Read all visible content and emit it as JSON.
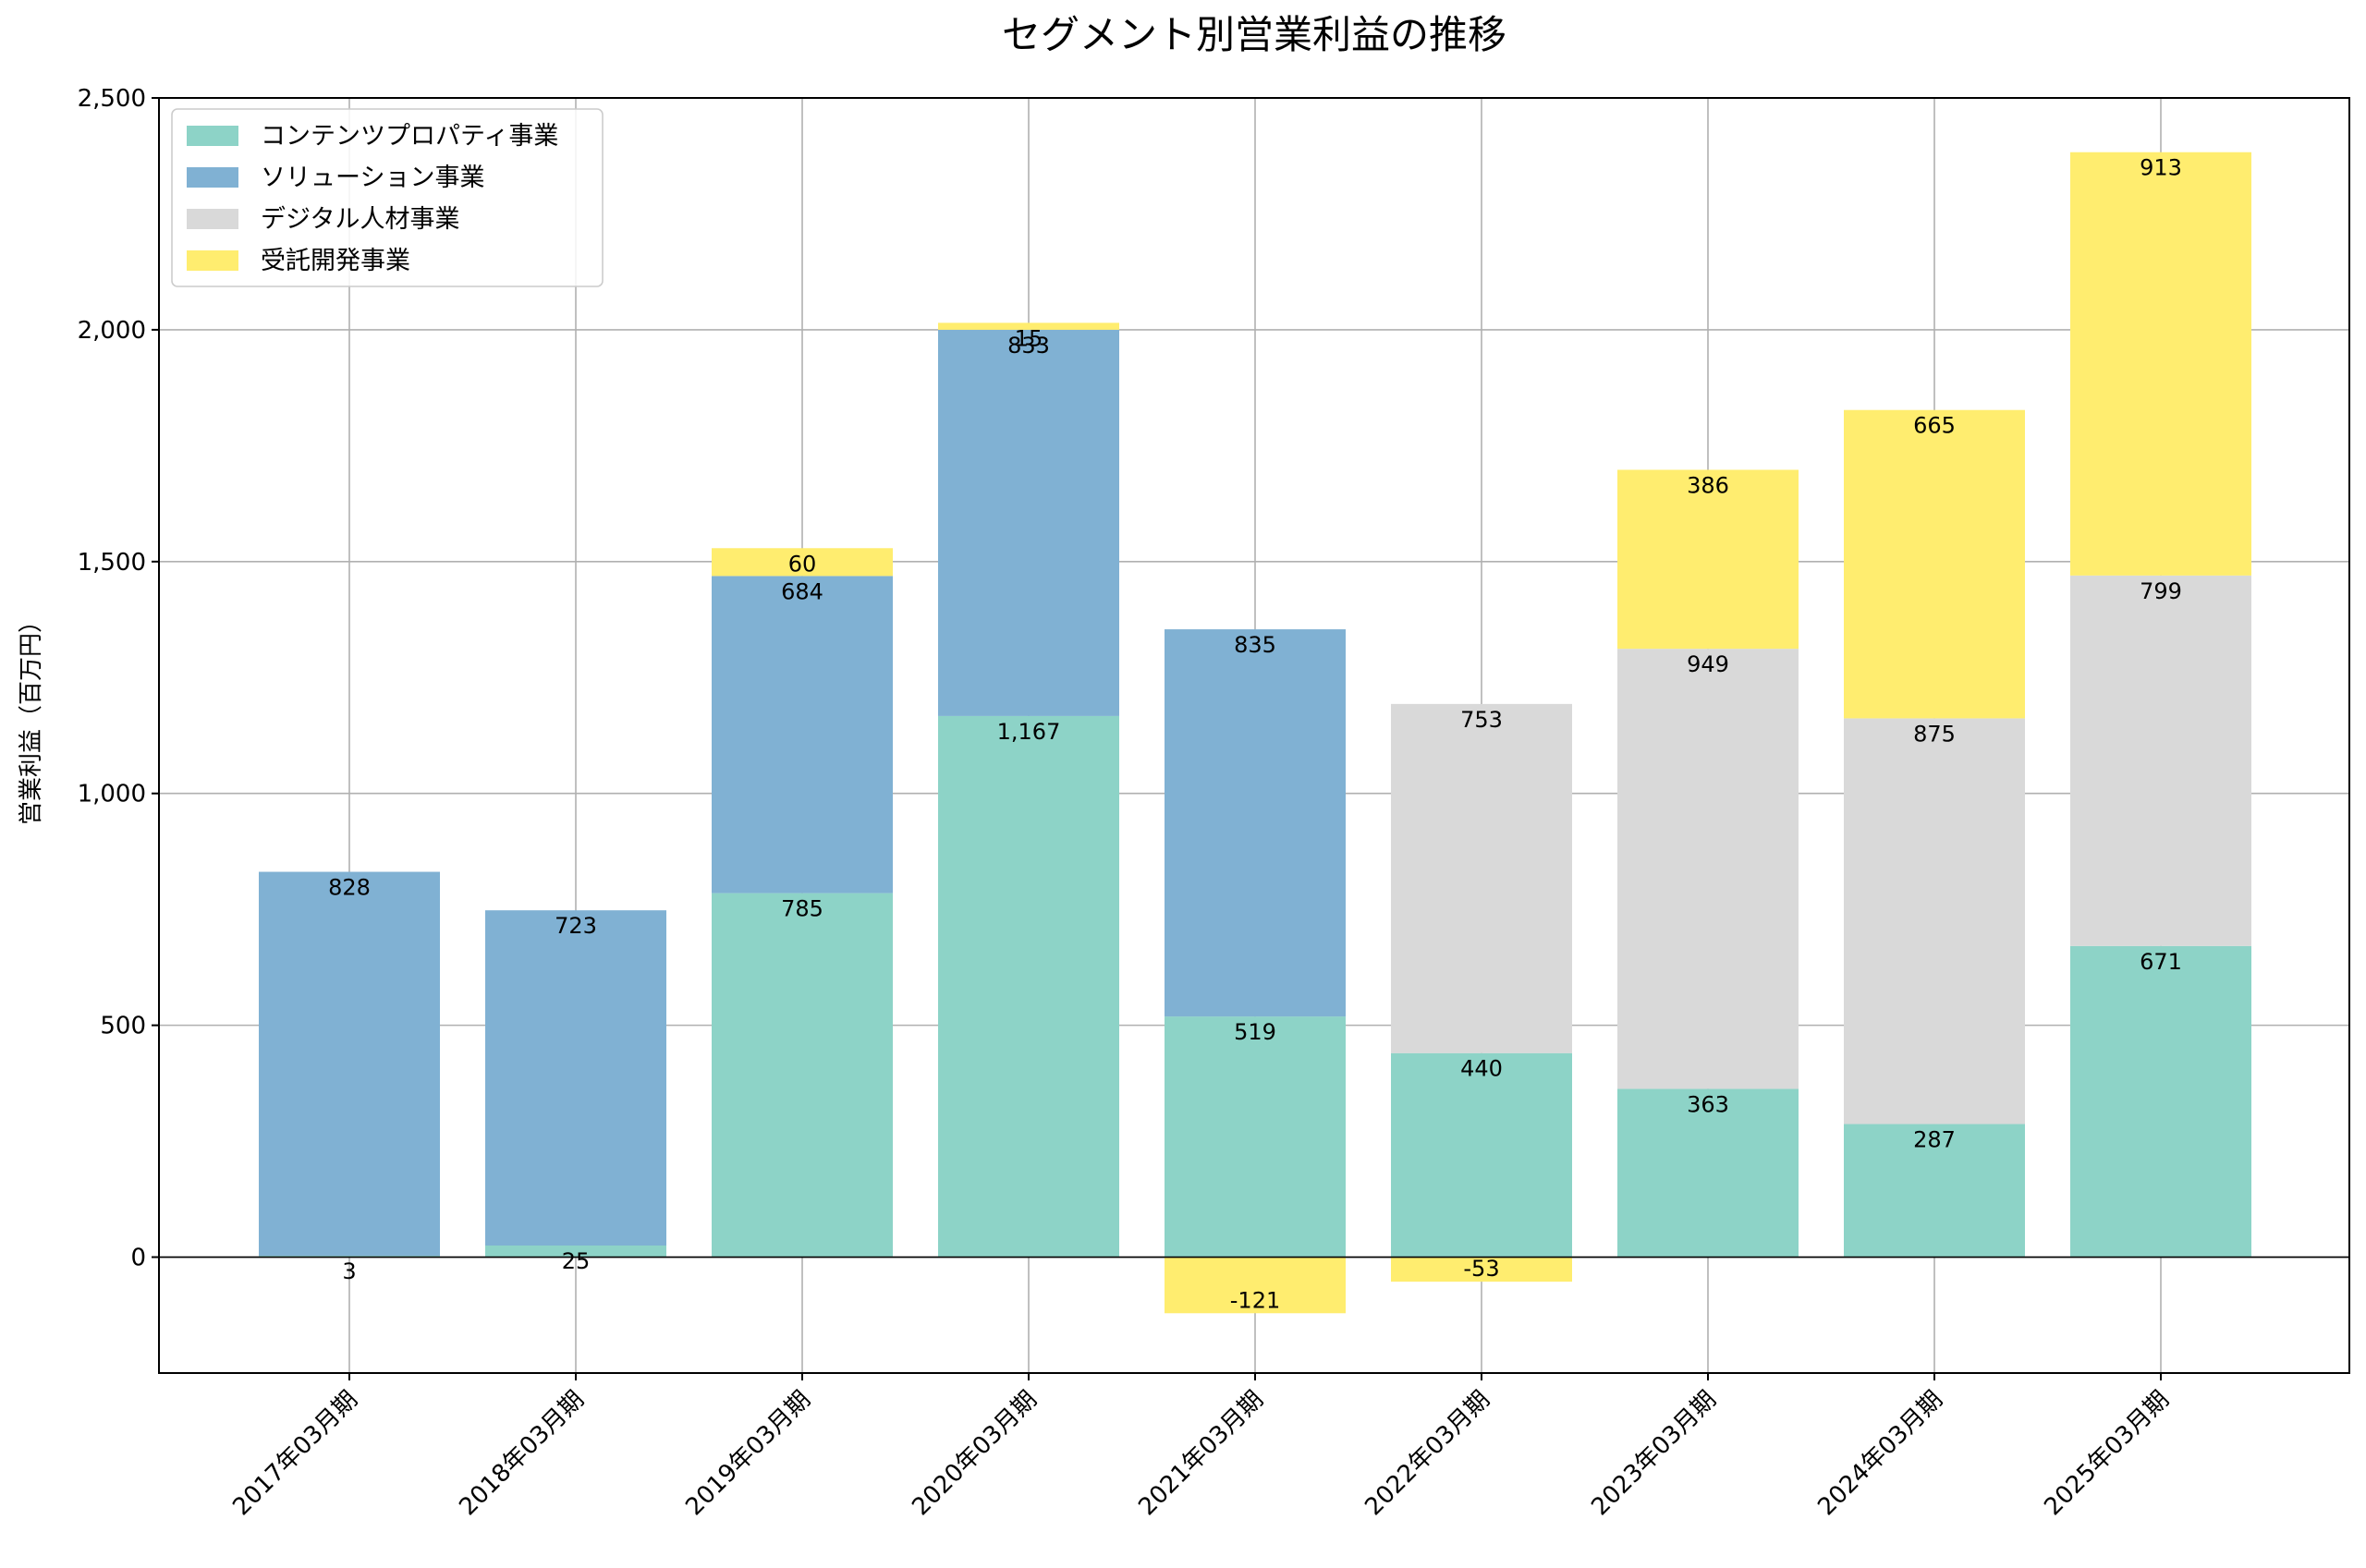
{
  "chart_data": {
    "type": "bar",
    "stacked": true,
    "title": "セグメント別営業利益の推移",
    "xlabel": "",
    "ylabel": "営業利益（百万円）",
    "ylim": [
      -250,
      2500
    ],
    "yticks": [
      0,
      500,
      1000,
      1500,
      2000,
      2500
    ],
    "ytick_labels": [
      "0",
      "500",
      "1,000",
      "1,500",
      "2,000",
      "2,500"
    ],
    "grid": true,
    "legend_position": "top-left",
    "categories": [
      "2017年03月期",
      "2018年03月期",
      "2019年03月期",
      "2020年03月期",
      "2021年03月期",
      "2022年03月期",
      "2023年03月期",
      "2024年03月期",
      "2025年03月期"
    ],
    "series": [
      {
        "name": "コンテンツプロパティ事業",
        "color": "#8dd3c7",
        "values": [
          3,
          25,
          785,
          1167,
          519,
          440,
          363,
          287,
          671
        ]
      },
      {
        "name": "ソリューション事業",
        "color": "#80b1d3",
        "values": [
          828,
          723,
          684,
          833,
          835,
          null,
          null,
          null,
          null
        ]
      },
      {
        "name": "デジタル人材事業",
        "color": "#d9d9d9",
        "values": [
          null,
          null,
          null,
          null,
          null,
          753,
          949,
          875,
          799
        ]
      },
      {
        "name": "受託開発事業",
        "color": "#ffed6f",
        "values": [
          null,
          null,
          60,
          15,
          -121,
          -53,
          386,
          665,
          913
        ]
      }
    ]
  }
}
